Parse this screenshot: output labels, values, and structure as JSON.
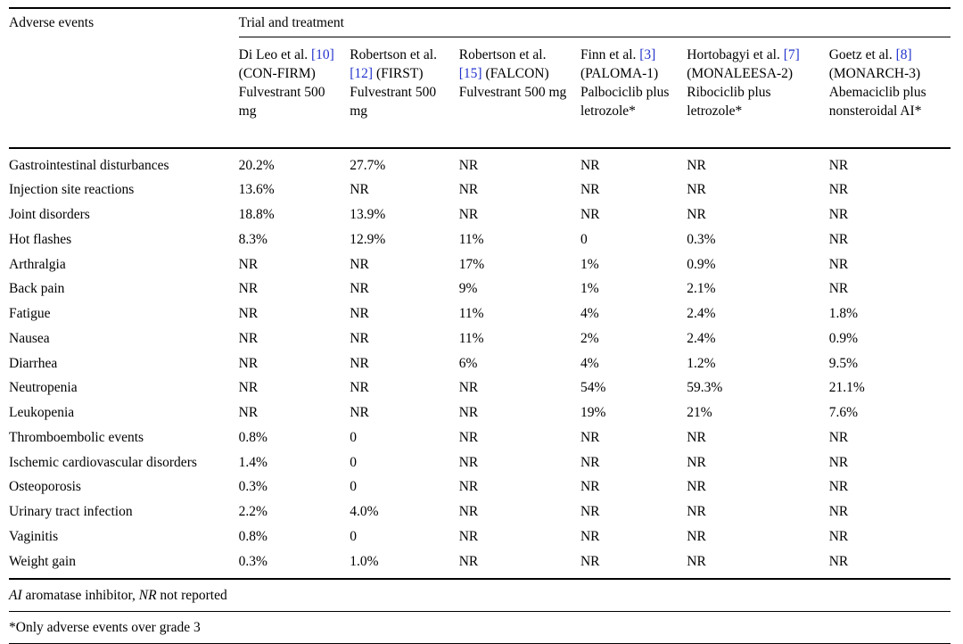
{
  "colors": {
    "citation": "#2233cc",
    "text": "#000000",
    "background": "#ffffff"
  },
  "table": {
    "corner_header": "Adverse events",
    "group_header": "Trial and treatment",
    "columns": [
      {
        "study": "Di Leo et al.",
        "cite": "[10]",
        "desc": "(CON-FIRM) Fulvestrant 500 mg"
      },
      {
        "study": "Robertson et al.",
        "cite": "[12]",
        "desc": "(FIRST) Fulvestrant 500 mg"
      },
      {
        "study": "Robertson et al.",
        "cite": "[15]",
        "desc": "(FALCON) Fulvestrant 500 mg"
      },
      {
        "study": "Finn et al.",
        "cite": "[3]",
        "desc": "(PALOMA-1) Palbociclib plus letrozole*"
      },
      {
        "study": "Hortobagyi et al.",
        "cite": "[7]",
        "desc": "(MONALEESA-2) Ribociclib plus letrozole*"
      },
      {
        "study": "Goetz et al.",
        "cite": "[8]",
        "desc": "(MONARCH-3) Abemaciclib plus nonsteroidal AI*"
      }
    ],
    "rows": [
      {
        "label": "Gastrointestinal disturbances",
        "values": [
          "20.2%",
          "27.7%",
          "NR",
          "NR",
          "NR",
          "NR"
        ]
      },
      {
        "label": "Injection site reactions",
        "values": [
          "13.6%",
          "NR",
          "NR",
          "NR",
          "NR",
          "NR"
        ]
      },
      {
        "label": "Joint disorders",
        "values": [
          "18.8%",
          "13.9%",
          "NR",
          "NR",
          "NR",
          "NR"
        ]
      },
      {
        "label": "Hot flashes",
        "values": [
          "8.3%",
          "12.9%",
          "11%",
          "0",
          "0.3%",
          "NR"
        ]
      },
      {
        "label": "Arthralgia",
        "values": [
          "NR",
          "NR",
          "17%",
          "1%",
          "0.9%",
          "NR"
        ]
      },
      {
        "label": "Back pain",
        "values": [
          "NR",
          "NR",
          "9%",
          "1%",
          "2.1%",
          "NR"
        ]
      },
      {
        "label": "Fatigue",
        "values": [
          "NR",
          "NR",
          "11%",
          "4%",
          "2.4%",
          "1.8%"
        ]
      },
      {
        "label": "Nausea",
        "values": [
          "NR",
          "NR",
          "11%",
          "2%",
          "2.4%",
          "0.9%"
        ]
      },
      {
        "label": "Diarrhea",
        "values": [
          "NR",
          "NR",
          "6%",
          "4%",
          "1.2%",
          "9.5%"
        ]
      },
      {
        "label": "Neutropenia",
        "values": [
          "NR",
          "NR",
          "NR",
          "54%",
          "59.3%",
          "21.1%"
        ]
      },
      {
        "label": "Leukopenia",
        "values": [
          "NR",
          "NR",
          "NR",
          "19%",
          "21%",
          "7.6%"
        ]
      },
      {
        "label": "Thromboembolic events",
        "values": [
          "0.8%",
          "0",
          "NR",
          "NR",
          "NR",
          "NR"
        ]
      },
      {
        "label": "Ischemic cardiovascular disorders",
        "values": [
          "1.4%",
          "0",
          "NR",
          "NR",
          "NR",
          "NR"
        ]
      },
      {
        "label": "Osteoporosis",
        "values": [
          "0.3%",
          "0",
          "NR",
          "NR",
          "NR",
          "NR"
        ]
      },
      {
        "label": "Urinary tract infection",
        "values": [
          "2.2%",
          "4.0%",
          "NR",
          "NR",
          "NR",
          "NR"
        ]
      },
      {
        "label": "Vaginitis",
        "values": [
          "0.8%",
          "0",
          "NR",
          "NR",
          "NR",
          "NR"
        ]
      },
      {
        "label": "Weight gain",
        "values": [
          "0.3%",
          "1.0%",
          "NR",
          "NR",
          "NR",
          "NR"
        ]
      }
    ],
    "footnotes": {
      "ai_term": "AI",
      "ai_def": " aromatase inhibitor, ",
      "nr_term": "NR",
      "nr_def": " not reported",
      "grade": "*Only adverse events over grade 3"
    }
  }
}
